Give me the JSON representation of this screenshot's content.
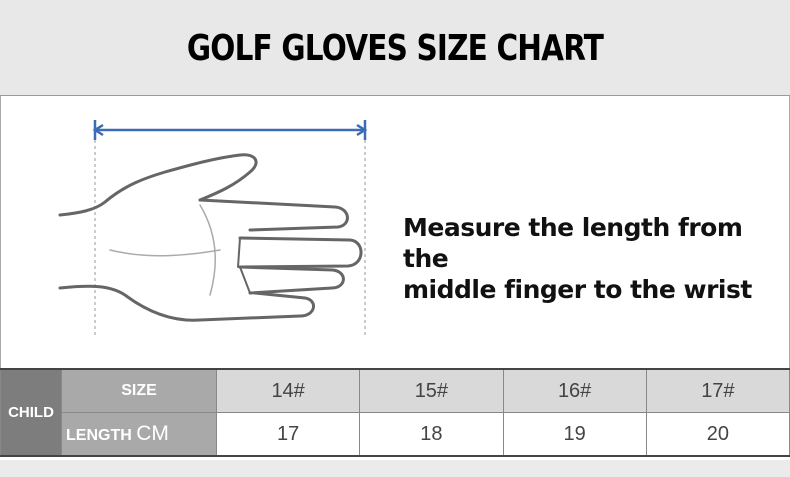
{
  "title": "GOLF GLOVES SIZE CHART",
  "instruction": {
    "line1": "Measure the length from the",
    "line2": "middle finger to the wrist"
  },
  "table": {
    "group_label": "CHILD",
    "size_label": "SIZE",
    "length_label": "LENGTH",
    "length_unit": "CM",
    "sizes": [
      "14#",
      "15#",
      "16#",
      "17#"
    ],
    "lengths": [
      "17",
      "18",
      "19",
      "20"
    ]
  },
  "colors": {
    "measure_line": "#3a6db5",
    "group_cell": "#7d7d7d",
    "label_cell": "#a9a9a9",
    "size_row": "#d9d9d9"
  }
}
